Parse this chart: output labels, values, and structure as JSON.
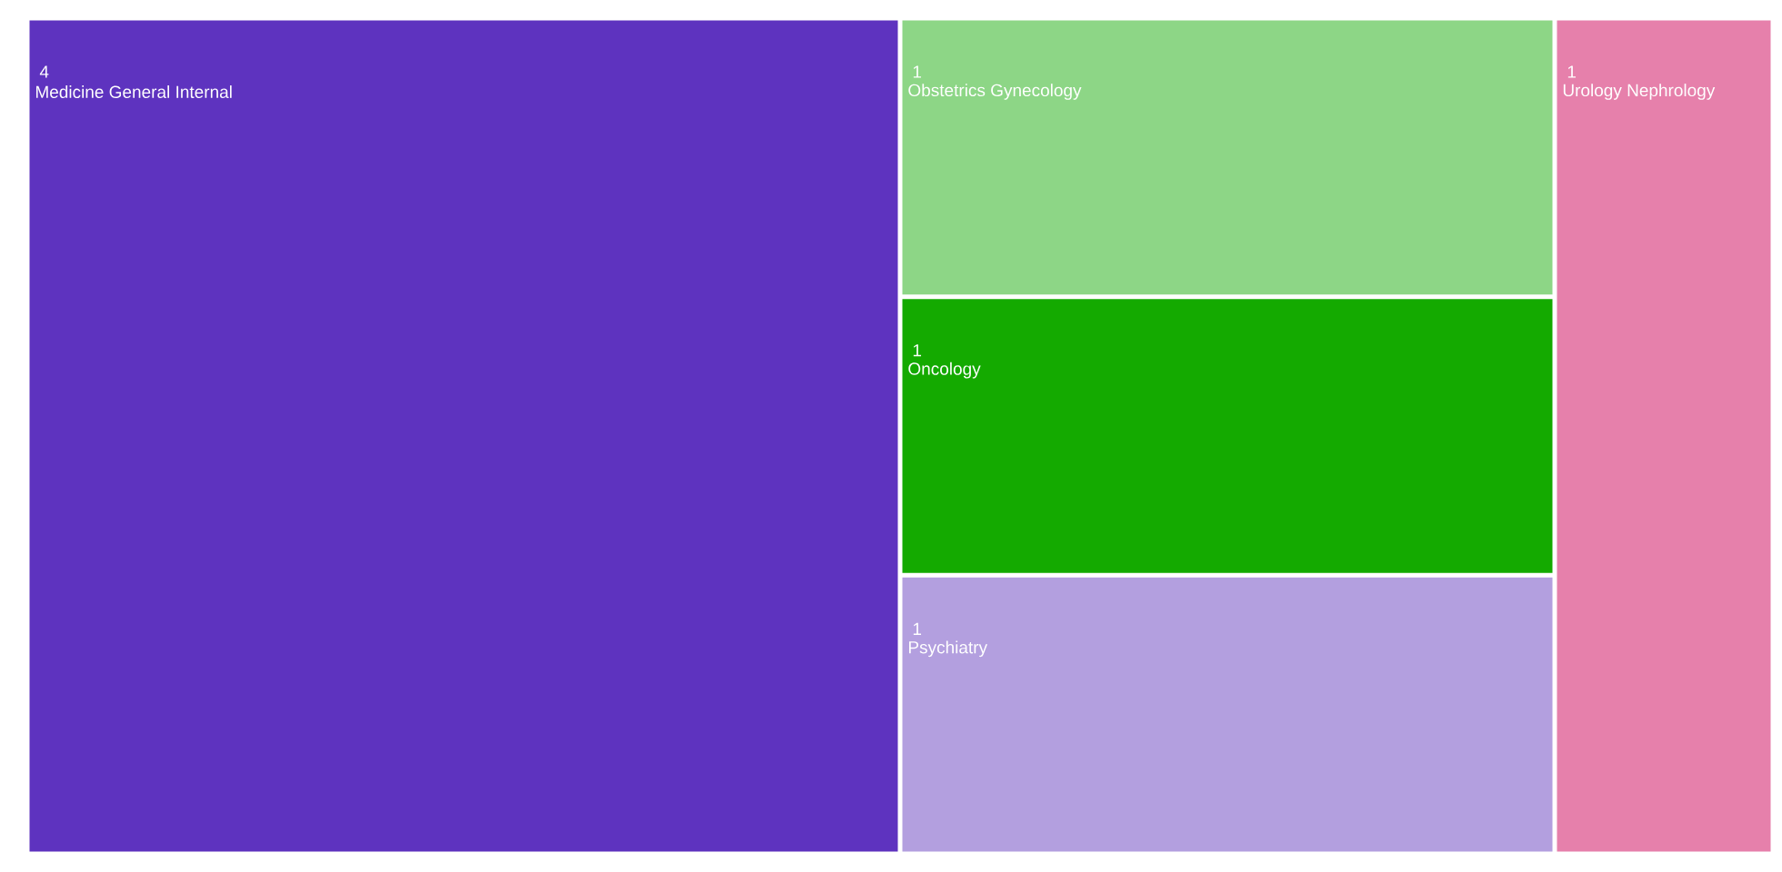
{
  "chart_data": {
    "type": "other",
    "categories": [
      "Medicine General Internal",
      "Obstetrics Gynecology",
      "Oncology",
      "Psychiatry",
      "Urology Nephrology"
    ],
    "values": [
      4,
      1,
      1,
      1,
      1
    ],
    "colors": [
      "#5e33bf",
      "#8dd686",
      "#14aa00",
      "#b39fdf",
      "#e680ab"
    ],
    "data_labels": true
  }
}
